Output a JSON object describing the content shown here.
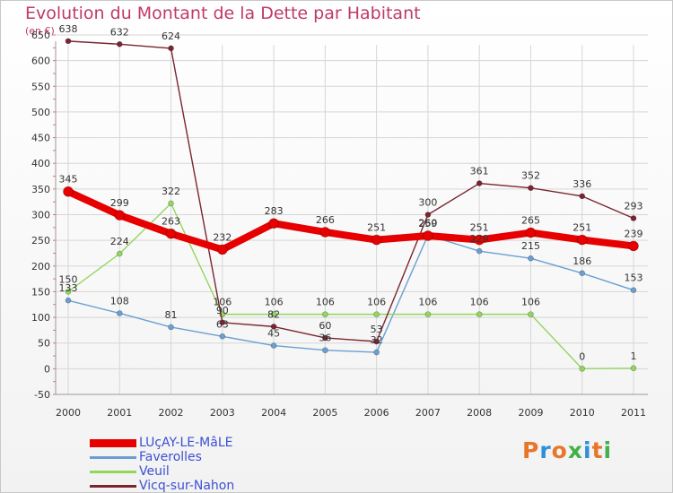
{
  "title": "Evolution du Montant de la Dette par Habitant",
  "unit_label": "(en €)",
  "logo_text": "Proxiti",
  "colors": {
    "title": "#c0396a",
    "axis_text": "#333333",
    "grid": "#d6d6d6",
    "legend_text": "#3c50d2"
  },
  "chart_data": {
    "type": "line",
    "title": "Evolution du Montant de la Dette par Habitant",
    "ylabel": "(en €)",
    "xlabel": "",
    "ylim": [
      -50,
      650
    ],
    "y_ticks": [
      -50,
      0,
      50,
      100,
      150,
      200,
      250,
      300,
      350,
      400,
      450,
      500,
      550,
      600,
      650
    ],
    "grid": true,
    "legend_position": "bottom-left",
    "x": [
      "2000",
      "2001",
      "2002",
      "2003",
      "2004",
      "2005",
      "2006",
      "2007",
      "2008",
      "2009",
      "2010",
      "2011"
    ],
    "series": [
      {
        "name": "LUçAY-LE-MâLE",
        "color": "#e60000",
        "width": 8,
        "marker_r": 5.5,
        "values": [
          345,
          299,
          263,
          232,
          283,
          266,
          251,
          259,
          251,
          265,
          251,
          239
        ]
      },
      {
        "name": "Faverolles",
        "color": "#6b9fd2",
        "width": 1.4,
        "marker_r": 3,
        "values": [
          133,
          108,
          81,
          63,
          45,
          36,
          32,
          260,
          229,
          215,
          186,
          153
        ]
      },
      {
        "name": "Veuil",
        "color": "#93d65c",
        "width": 1.4,
        "marker_r": 3,
        "values": [
          150,
          224,
          322,
          106,
          106,
          106,
          106,
          106,
          106,
          106,
          0,
          1
        ]
      },
      {
        "name": "Vicq-sur-Nahon",
        "color": "#7a2530",
        "width": 1.4,
        "marker_r": 3,
        "values": [
          638,
          632,
          624,
          90,
          82,
          60,
          53,
          300,
          361,
          352,
          336,
          293
        ]
      }
    ]
  }
}
